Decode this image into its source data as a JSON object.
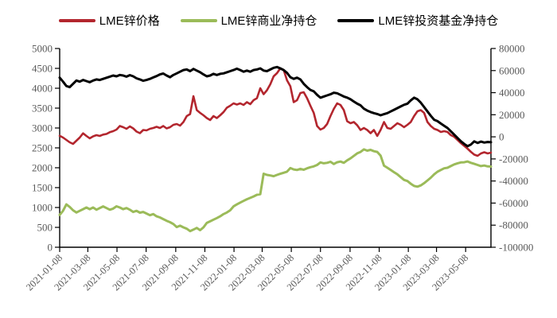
{
  "figure": {
    "background": "#ffffff"
  },
  "legend": {
    "position": "top"
  },
  "chart_data": {
    "type": "line",
    "title": "",
    "grid": false,
    "x_axis": {
      "start_date": "2021-01-08",
      "frequency": "weekly",
      "num_points": 130,
      "total_days": 903,
      "tick_labels": [
        "2021-01-08",
        "2021-03-08",
        "2021-05-08",
        "2021-07-08",
        "2021-09-08",
        "2021-11-08",
        "2022-01-08",
        "2022-03-08",
        "2022-05-08",
        "2022-07-08",
        "2022-09-08",
        "2022-11-08",
        "2023-01-08",
        "2023-03-08",
        "2023-05-08"
      ],
      "tick_day_offsets": [
        0,
        59,
        120,
        181,
        243,
        304,
        365,
        424,
        485,
        546,
        608,
        669,
        730,
        789,
        850
      ]
    },
    "y_left": {
      "min": 0,
      "max": 5000,
      "applies_to": "LME锌价格",
      "ticks": [
        5000,
        4500,
        4000,
        3500,
        3000,
        2500,
        2000,
        1500,
        1000,
        500,
        0
      ]
    },
    "y_right": {
      "min": -100000,
      "max": 80000,
      "applies_to": "净持仓",
      "ticks": [
        80000,
        60000,
        40000,
        20000,
        0,
        -20000,
        -40000,
        -60000,
        -80000,
        -100000
      ]
    },
    "axis_color": "#000000",
    "tick_text_color": "#595959",
    "series": [
      {
        "name": "LME锌价格",
        "axis": "left",
        "color": "#b3262e",
        "values": [
          2805,
          2760,
          2700,
          2640,
          2600,
          2680,
          2760,
          2866,
          2800,
          2740,
          2790,
          2820,
          2800,
          2835,
          2850,
          2895,
          2920,
          2960,
          3050,
          3020,
          2980,
          3040,
          2990,
          2910,
          2870,
          2950,
          2940,
          2980,
          3000,
          3030,
          3000,
          3050,
          2990,
          3020,
          3080,
          3100,
          3060,
          3150,
          3300,
          3350,
          3800,
          3450,
          3380,
          3320,
          3250,
          3200,
          3300,
          3250,
          3320,
          3400,
          3510,
          3560,
          3620,
          3590,
          3620,
          3580,
          3650,
          3600,
          3700,
          3750,
          4000,
          3850,
          3950,
          4100,
          4300,
          4380,
          4500,
          4460,
          4200,
          4050,
          3650,
          3700,
          3880,
          3900,
          3750,
          3560,
          3380,
          3050,
          2960,
          3000,
          3100,
          3300,
          3480,
          3620,
          3580,
          3450,
          3170,
          3120,
          3150,
          3070,
          2950,
          3000,
          2950,
          2870,
          2950,
          2800,
          2950,
          3150,
          3000,
          2980,
          3050,
          3120,
          3080,
          3020,
          3080,
          3150,
          3300,
          3420,
          3450,
          3380,
          3150,
          3050,
          2980,
          2950,
          2900,
          2920,
          2900,
          2820,
          2780,
          2700,
          2620,
          2550,
          2480,
          2400,
          2330,
          2300,
          2360,
          2390,
          2360,
          2380
        ]
      },
      {
        "name": "LME锌商业净持仓",
        "axis": "right",
        "color": "#9bbb59",
        "values": [
          -70700,
          -67000,
          -61200,
          -63500,
          -66500,
          -68500,
          -67000,
          -65500,
          -64000,
          -65500,
          -64000,
          -66000,
          -64500,
          -63000,
          -64500,
          -66000,
          -65000,
          -62900,
          -64000,
          -65500,
          -64500,
          -66000,
          -68000,
          -67000,
          -68700,
          -68000,
          -69500,
          -71000,
          -70000,
          -72000,
          -73000,
          -74500,
          -76000,
          -77300,
          -79000,
          -81700,
          -80500,
          -82000,
          -83200,
          -85400,
          -84000,
          -82500,
          -84500,
          -82000,
          -78000,
          -76500,
          -75000,
          -73600,
          -72000,
          -70000,
          -68500,
          -66500,
          -63000,
          -61200,
          -59500,
          -58000,
          -56500,
          -55300,
          -54000,
          -52500,
          -52000,
          -33400,
          -34500,
          -35000,
          -35600,
          -34500,
          -33500,
          -32500,
          -31500,
          -28300,
          -29500,
          -30000,
          -29000,
          -29800,
          -28500,
          -27500,
          -26800,
          -25500,
          -23200,
          -24000,
          -23500,
          -22600,
          -24600,
          -23000,
          -22400,
          -23500,
          -21300,
          -19500,
          -17300,
          -15000,
          -13700,
          -11400,
          -12500,
          -11800,
          -13000,
          -13700,
          -17000,
          -26100,
          -28000,
          -30000,
          -32000,
          -34000,
          -36500,
          -39000,
          -40000,
          -42500,
          -44500,
          -45100,
          -44000,
          -42000,
          -39500,
          -37000,
          -34000,
          -31600,
          -30000,
          -28500,
          -28000,
          -26500,
          -25000,
          -24000,
          -23200,
          -23000,
          -22300,
          -23500,
          -24500,
          -25500,
          -26500,
          -26000,
          -26800,
          -26900
        ]
      },
      {
        "name": "LME锌投资基金净持仓",
        "axis": "right",
        "color": "#000000",
        "values": [
          53600,
          50000,
          46000,
          45000,
          48000,
          51000,
          50000,
          51500,
          50500,
          49500,
          51000,
          52000,
          51500,
          52500,
          53500,
          54500,
          55500,
          54800,
          56000,
          55500,
          54500,
          55900,
          54800,
          53000,
          52000,
          50800,
          51500,
          52500,
          53800,
          55000,
          56500,
          57300,
          55500,
          54000,
          56000,
          57500,
          59000,
          60500,
          61000,
          59500,
          61500,
          60000,
          58500,
          56500,
          54800,
          55500,
          57000,
          56000,
          57000,
          57500,
          58500,
          59500,
          60500,
          61700,
          60500,
          59000,
          60000,
          59000,
          60500,
          61000,
          62000,
          60000,
          59500,
          61000,
          62500,
          63200,
          62000,
          60500,
          58000,
          54000,
          52500,
          53600,
          52000,
          48000,
          45000,
          42500,
          41200,
          38000,
          35400,
          36500,
          37500,
          38500,
          40000,
          39500,
          38000,
          36500,
          35500,
          34000,
          32000,
          30000,
          28500,
          25500,
          23800,
          22500,
          21500,
          20700,
          19500,
          20500,
          21500,
          23000,
          24500,
          26000,
          27500,
          29000,
          30000,
          33000,
          35400,
          34000,
          31000,
          27000,
          23000,
          19000,
          15500,
          14200,
          12000,
          10000,
          8000,
          5000,
          2000,
          -1000,
          -4000,
          -6500,
          -8500,
          -7000,
          -4100,
          -5500,
          -4300,
          -5200,
          -4700,
          -4900
        ]
      }
    ]
  }
}
